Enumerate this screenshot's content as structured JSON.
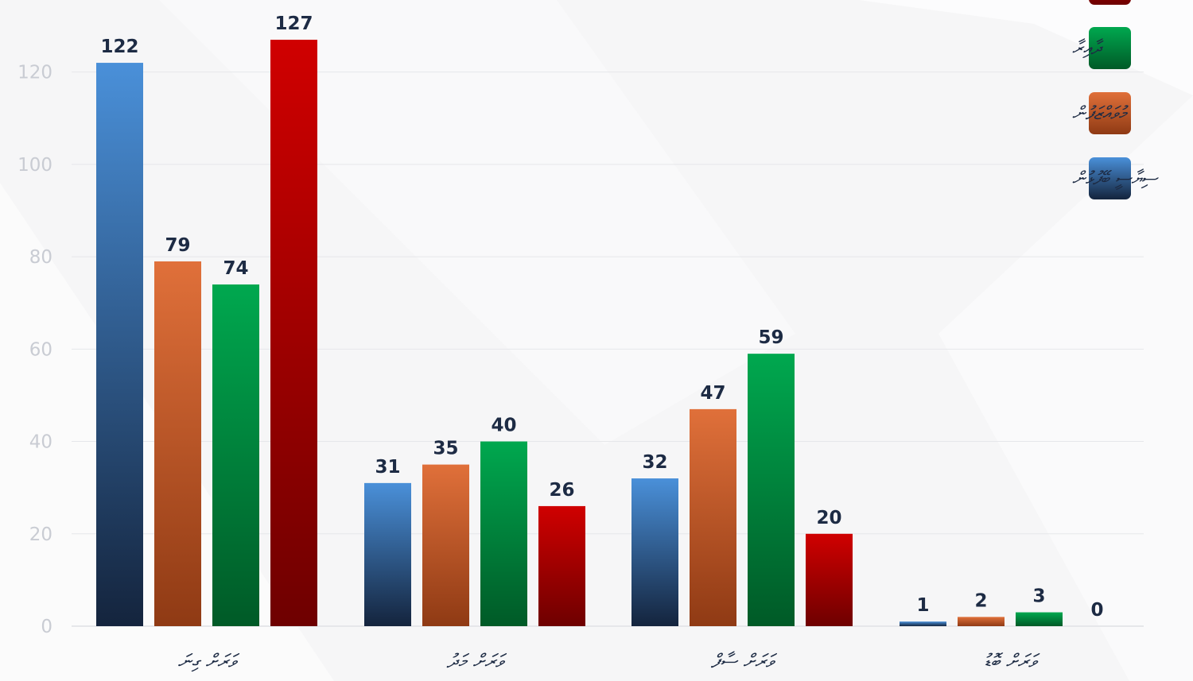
{
  "chart_data": {
    "type": "bar",
    "categories": [
      "ވަރަށް ގިނަ",
      "ވަރަށް މަދު",
      "ވަރަށް ސާފް",
      "ވަރަށް ބޮޑު"
    ],
    "series": [
      {
        "name": "ސިޔާސީ ބޭފުޅުން",
        "color": "#4a90d9",
        "values": [
          122,
          31,
          32,
          1
        ]
      },
      {
        "name": "މުވައްޒަފުން",
        "color": "#e0703a",
        "values": [
          79,
          35,
          47,
          2
        ]
      },
      {
        "name": "ދާއިރާ",
        "color": "#00a84f",
        "values": [
          74,
          40,
          59,
          3
        ]
      },
      {
        "name": "",
        "color": "#d00000",
        "values": [
          127,
          26,
          20,
          0
        ]
      }
    ],
    "yticks": [
      0,
      20,
      40,
      60,
      80,
      100,
      120
    ],
    "ylim": [
      0,
      127
    ],
    "grid": true,
    "legend_position": "top-right"
  },
  "colors": {
    "blue_dark": "#14243d",
    "orange_dark": "#8f3a14",
    "green_dark": "#005a27",
    "red_dark": "#6e0000",
    "text": "#1d2b44",
    "grid": "#e6e7ea"
  }
}
